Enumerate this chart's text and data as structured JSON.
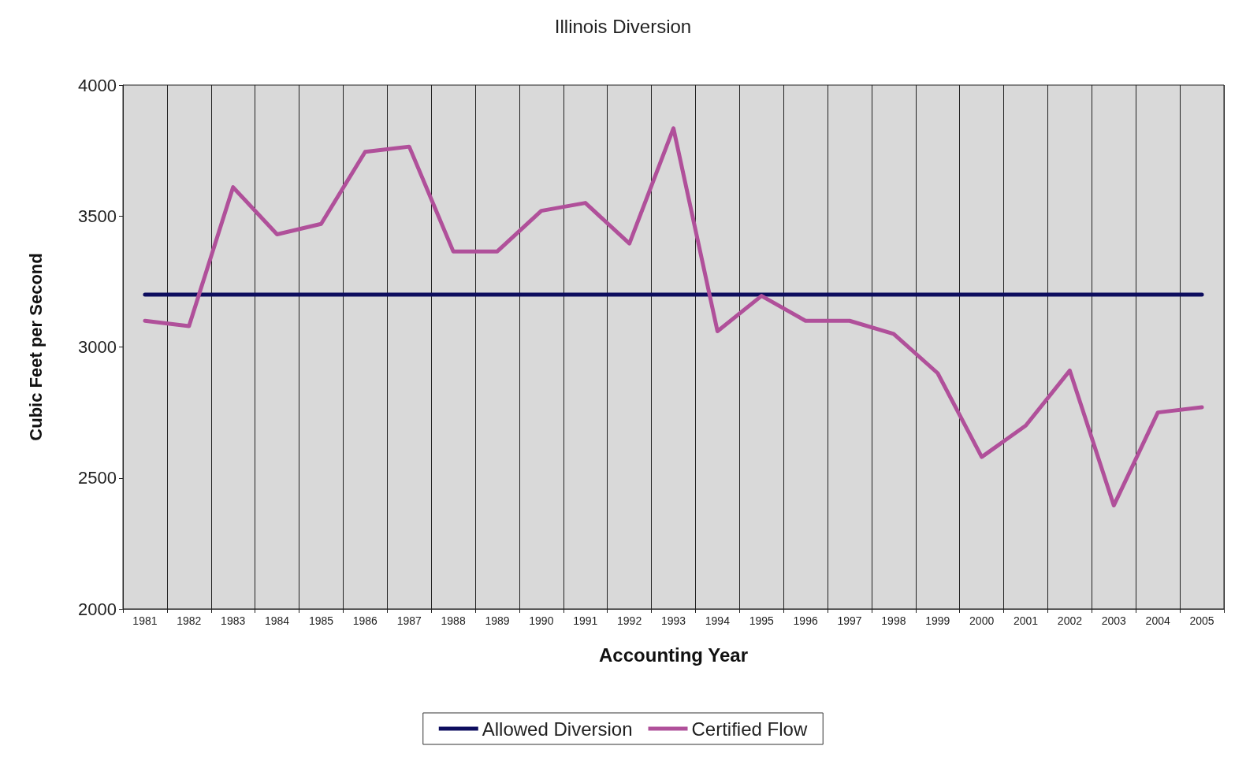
{
  "chart_data": {
    "type": "line",
    "title": "Illinois Diversion",
    "xlabel": "Accounting Year",
    "ylabel": "Cubic Feet per Second",
    "categories": [
      "1981",
      "1982",
      "1983",
      "1984",
      "1985",
      "1986",
      "1987",
      "1988",
      "1989",
      "1990",
      "1991",
      "1992",
      "1993",
      "1994",
      "1995",
      "1996",
      "1997",
      "1998",
      "1999",
      "2000",
      "2001",
      "2002",
      "2003",
      "2004",
      "2005"
    ],
    "series": [
      {
        "name": "Allowed Diversion",
        "color": "#0d0d5e",
        "values": [
          3200,
          3200,
          3200,
          3200,
          3200,
          3200,
          3200,
          3200,
          3200,
          3200,
          3200,
          3200,
          3200,
          3200,
          3200,
          3200,
          3200,
          3200,
          3200,
          3200,
          3200,
          3200,
          3200,
          3200,
          3200
        ]
      },
      {
        "name": "Certified Flow",
        "color": "#b0509a",
        "values": [
          3100,
          3080,
          3610,
          3430,
          3470,
          3745,
          3765,
          3365,
          3365,
          3520,
          3550,
          3395,
          3835,
          3060,
          3195,
          3100,
          3100,
          3050,
          2900,
          2580,
          2700,
          2910,
          2395,
          2750,
          2770
        ]
      }
    ],
    "ylim": [
      2000,
      4000
    ],
    "yticks": [
      2000,
      2500,
      3000,
      3500,
      4000
    ],
    "grid": "x",
    "legend": "bottom",
    "marker": "none",
    "line_style": "solid"
  }
}
